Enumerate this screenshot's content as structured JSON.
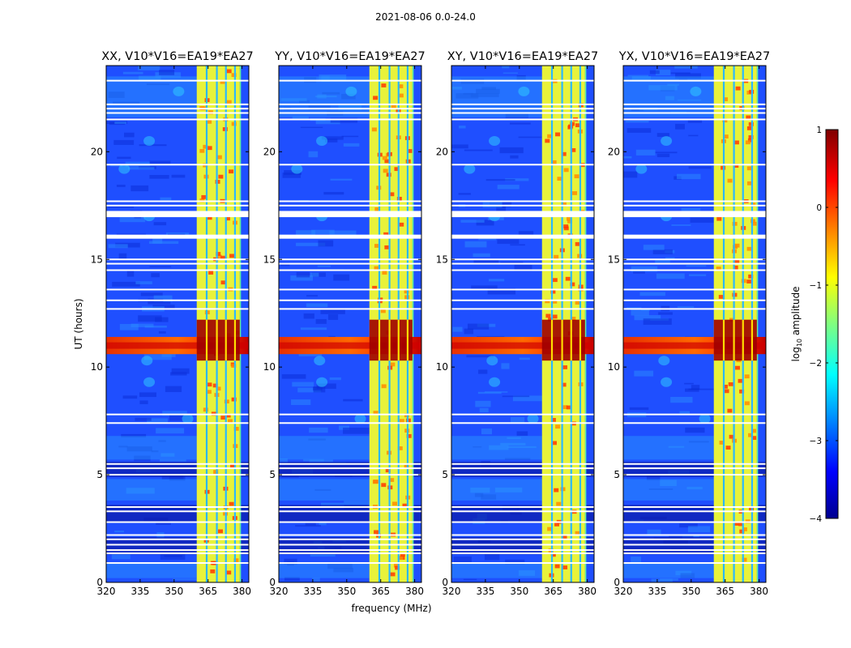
{
  "chart_data": {
    "type": "heatmap",
    "title": "2021-08-06 0.0-24.0",
    "xlabel": "frequency (MHz)",
    "ylabel": "UT (hours)",
    "xlim": [
      320,
      383
    ],
    "ylim": [
      0,
      24
    ],
    "x_ticks": [
      320,
      335,
      350,
      365,
      380
    ],
    "y_ticks": [
      0,
      5,
      10,
      15,
      20
    ],
    "panels": [
      {
        "title": "XX, V10*V16=EA19*EA27"
      },
      {
        "title": "YY, V10*V16=EA19*EA27"
      },
      {
        "title": "XY, V10*V16=EA19*EA27"
      },
      {
        "title": "YX, V10*V16=EA19*EA27"
      }
    ],
    "colorbar": {
      "label_prefix": "log",
      "label_sub": "10",
      "label_suffix": " amplitude",
      "vmin": -4,
      "vmax": 1,
      "ticks": [
        1,
        0,
        -1,
        -2,
        -3,
        -4
      ],
      "tick_labels": [
        "1",
        "0",
        "−1",
        "−2",
        "−3",
        "−4"
      ],
      "colormap": "jet"
    },
    "rfi_band_mhz": [
      360,
      379
    ],
    "rfi_channel_gaps_mhz": [
      364,
      368.5,
      372.5,
      376.5
    ],
    "strong_event_ut": [
      10.6,
      11.4
    ],
    "flagged_ut_rows": [
      0.9,
      1.35,
      1.5,
      1.75,
      2.0,
      2.2,
      2.8,
      3.3,
      3.5,
      5.0,
      5.3,
      5.5,
      7.4,
      7.8,
      12.7,
      13.1,
      13.6,
      14.5,
      14.8,
      15.0,
      16.0,
      16.1,
      17.0,
      17.2,
      17.5,
      17.7,
      19.4,
      21.5,
      21.8,
      22.0,
      22.2,
      23.3
    ]
  }
}
